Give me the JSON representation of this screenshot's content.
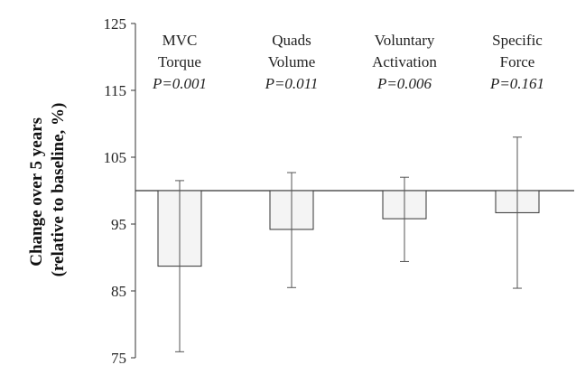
{
  "chart_data": {
    "type": "bar",
    "ylabel": [
      "Change over 5 years",
      "(relative to baseline, %)"
    ],
    "ylim": [
      75,
      125
    ],
    "yticks": [
      75,
      85,
      95,
      105,
      115,
      125
    ],
    "baseline": 100,
    "grid": false,
    "categories": [
      {
        "lines": [
          "MVC",
          "Torque"
        ],
        "p": "P=0.001"
      },
      {
        "lines": [
          "Quads",
          "Volume"
        ],
        "p": "P=0.011"
      },
      {
        "lines": [
          "Voluntary",
          "Activation"
        ],
        "p": "P=0.006"
      },
      {
        "lines": [
          "Specific",
          "Force"
        ],
        "p": "P=0.161"
      }
    ],
    "values": [
      88.7,
      94.2,
      95.8,
      96.7
    ],
    "error_low": [
      75.9,
      85.5,
      89.4,
      85.4
    ],
    "error_high": [
      101.5,
      102.7,
      102.0,
      108.0
    ],
    "colors": {
      "bar_fill": "#f4f4f4",
      "bar_stroke": "#333333",
      "axis": "#333333"
    }
  }
}
